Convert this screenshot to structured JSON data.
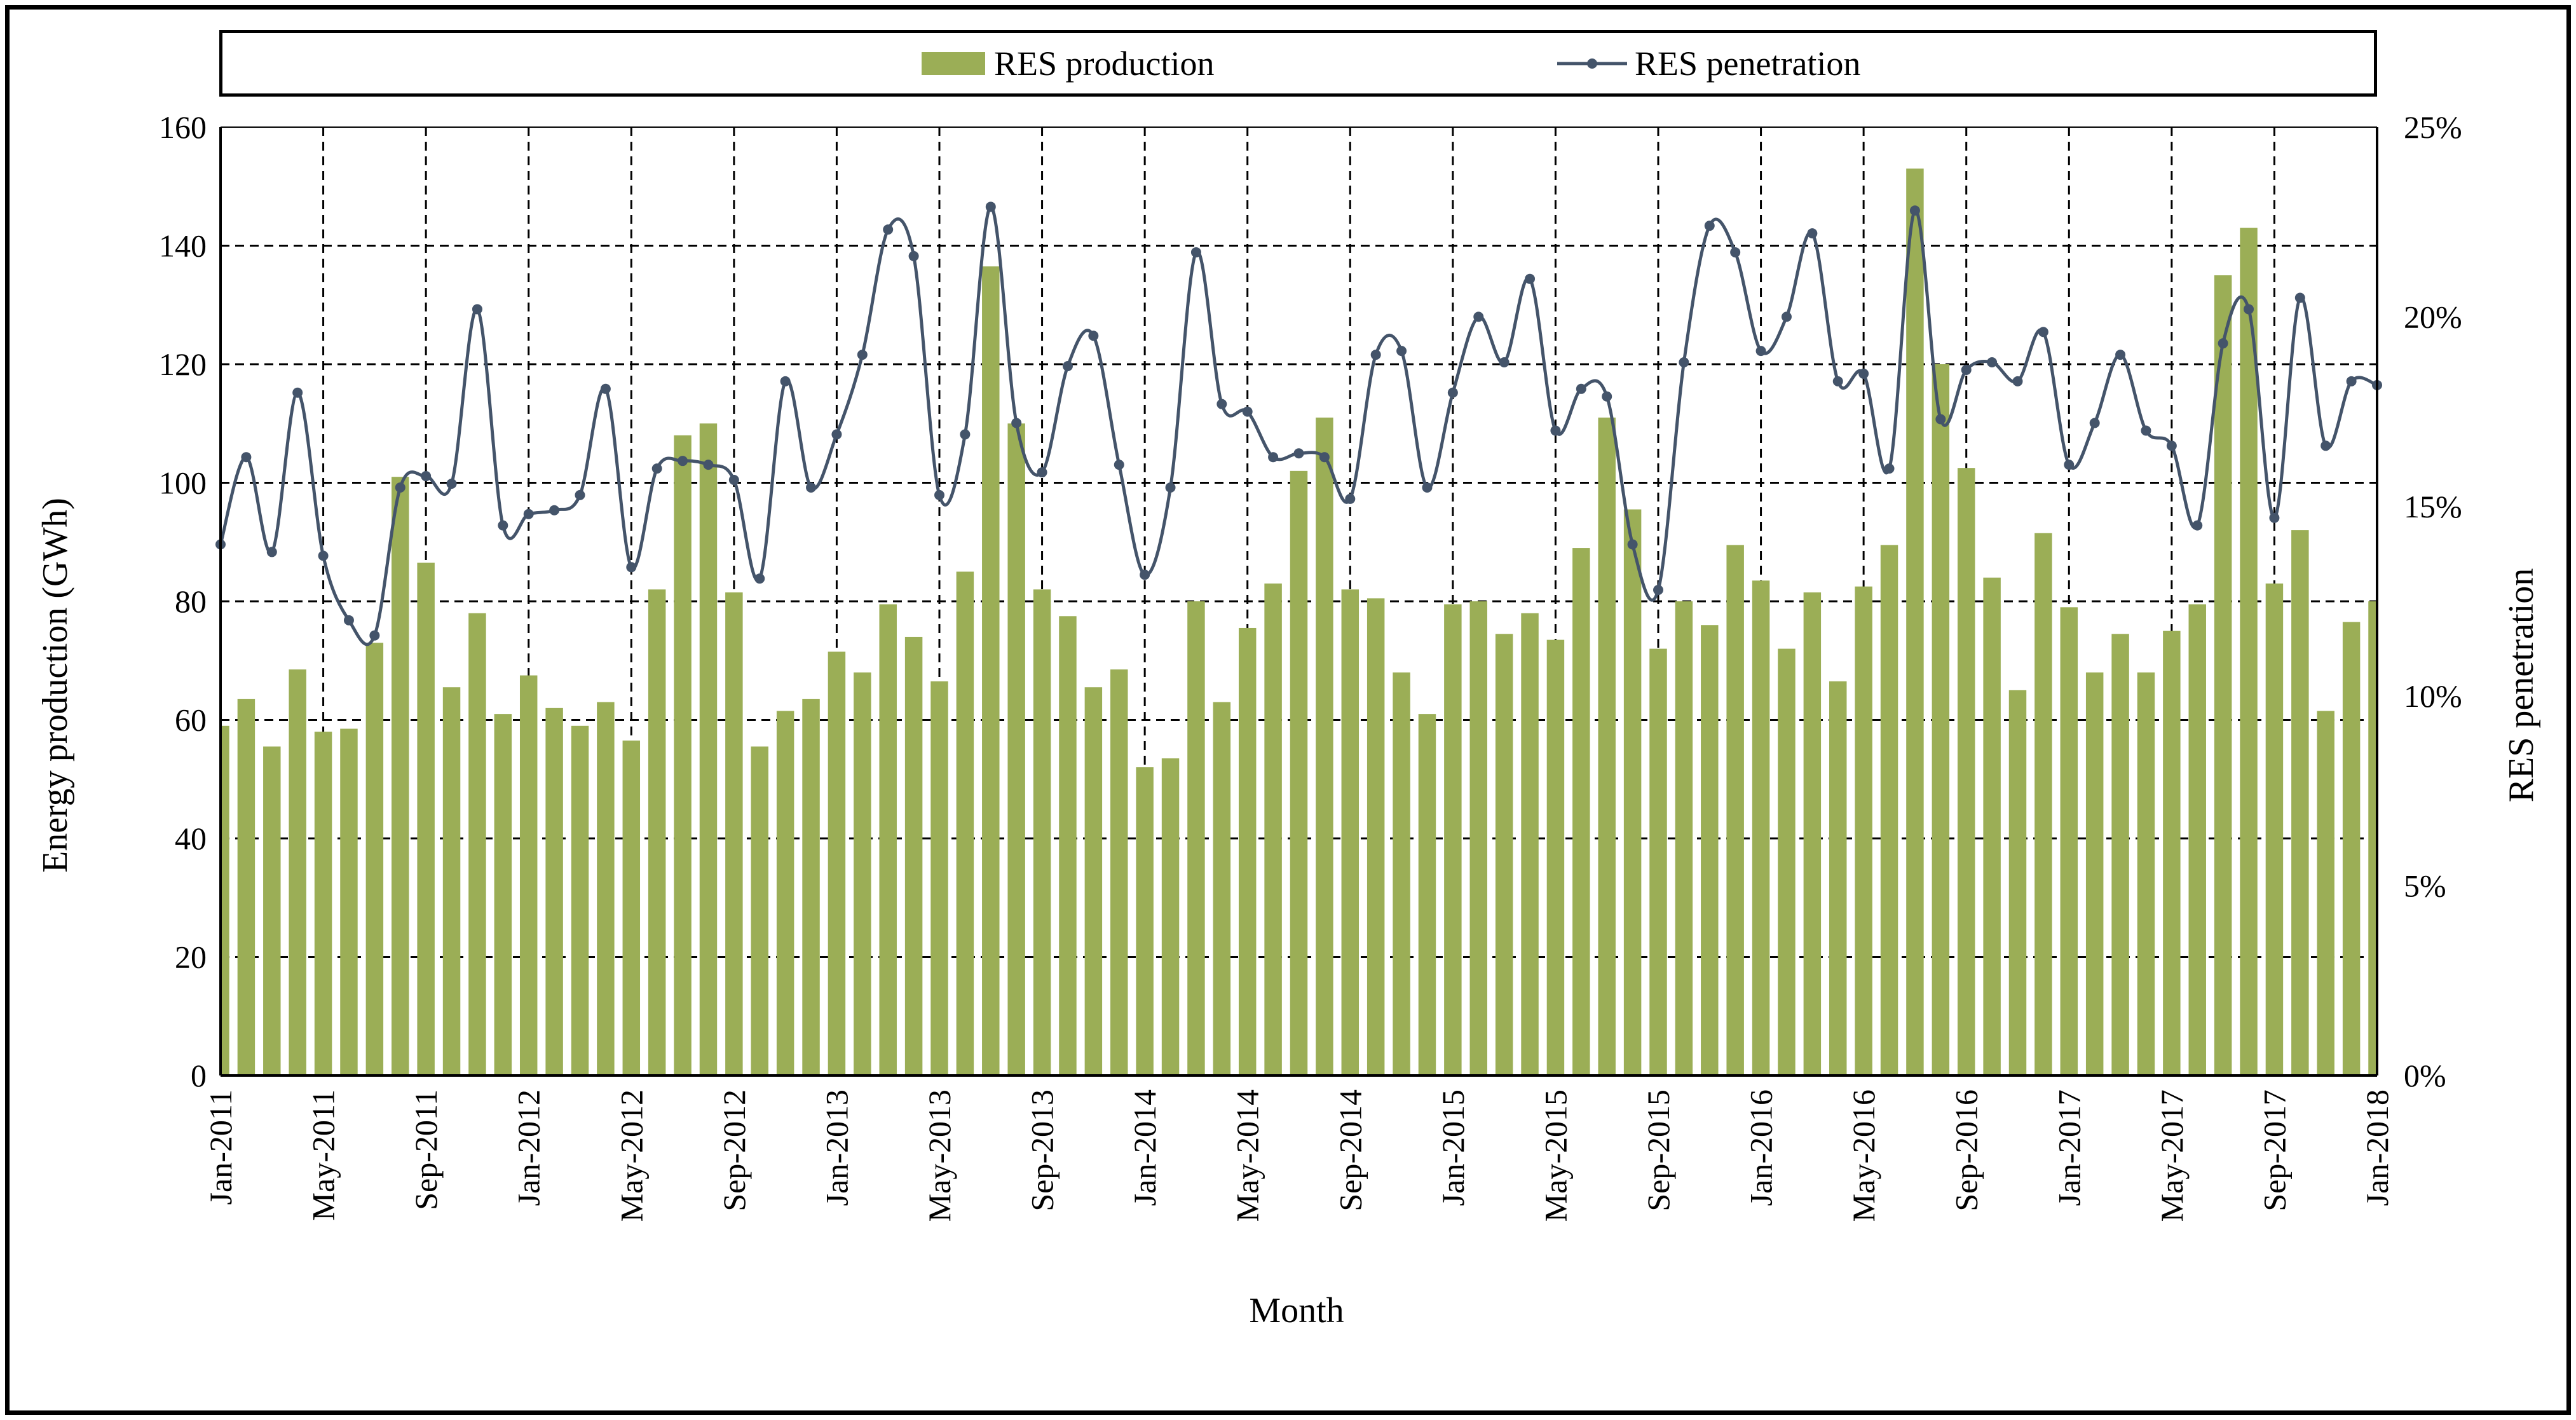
{
  "chart_data": {
    "type": "bar",
    "title": "",
    "xlabel": "Month",
    "ylabel": "Energy production (GWh)",
    "y2label": "RES penetration",
    "ylim": [
      0,
      160
    ],
    "y2lim": [
      0,
      25
    ],
    "yticks": [
      "0",
      "20",
      "40",
      "60",
      "80",
      "100",
      "120",
      "140",
      "160"
    ],
    "y2ticks": [
      "0%",
      "5%",
      "10%",
      "15%",
      "20%",
      "25%"
    ],
    "grid": "dashed",
    "legend_position": "top",
    "x": [
      "Jan-2011",
      "Feb-2011",
      "Mar-2011",
      "Apr-2011",
      "May-2011",
      "Jun-2011",
      "Jul-2011",
      "Aug-2011",
      "Sep-2011",
      "Oct-2011",
      "Nov-2011",
      "Dec-2011",
      "Jan-2012",
      "Feb-2012",
      "Mar-2012",
      "Apr-2012",
      "May-2012",
      "Jun-2012",
      "Jul-2012",
      "Aug-2012",
      "Sep-2012",
      "Oct-2012",
      "Nov-2012",
      "Dec-2012",
      "Jan-2013",
      "Feb-2013",
      "Mar-2013",
      "Apr-2013",
      "May-2013",
      "Jun-2013",
      "Jul-2013",
      "Aug-2013",
      "Sep-2013",
      "Oct-2013",
      "Nov-2013",
      "Dec-2013",
      "Jan-2014",
      "Feb-2014",
      "Mar-2014",
      "Apr-2014",
      "May-2014",
      "Jun-2014",
      "Jul-2014",
      "Aug-2014",
      "Sep-2014",
      "Oct-2014",
      "Nov-2014",
      "Dec-2014",
      "Jan-2015",
      "Feb-2015",
      "Mar-2015",
      "Apr-2015",
      "May-2015",
      "Jun-2015",
      "Jul-2015",
      "Aug-2015",
      "Sep-2015",
      "Oct-2015",
      "Nov-2015",
      "Dec-2015",
      "Jan-2016",
      "Feb-2016",
      "Mar-2016",
      "Apr-2016",
      "May-2016",
      "Jun-2016",
      "Jul-2016",
      "Aug-2016",
      "Sep-2016",
      "Oct-2016",
      "Nov-2016",
      "Dec-2016",
      "Jan-2017",
      "Feb-2017",
      "Mar-2017",
      "Apr-2017",
      "May-2017",
      "Jun-2017",
      "Jul-2017",
      "Aug-2017",
      "Sep-2017",
      "Oct-2017",
      "Nov-2017",
      "Dec-2017",
      "Jan-2018"
    ],
    "tick_labels": [
      "Jan-2011",
      "May-2011",
      "Sep-2011",
      "Jan-2012",
      "May-2012",
      "Sep-2012",
      "Jan-2013",
      "May-2013",
      "Sep-2013",
      "Jan-2014",
      "May-2014",
      "Sep-2014",
      "Jan-2015",
      "May-2015",
      "Sep-2015",
      "Jan-2016",
      "May-2016",
      "Sep-2016",
      "Jan-2017",
      "May-2017",
      "Sep-2017",
      "Jan-2018"
    ],
    "series": [
      {
        "name": "RES production",
        "type": "bar",
        "axis": "left",
        "color": "#9bae56",
        "values": [
          59,
          63.5,
          55.5,
          68.5,
          58,
          58.5,
          73,
          101,
          86.5,
          65.5,
          78,
          61,
          67.5,
          62,
          59,
          63,
          56.5,
          82,
          108,
          110,
          81.5,
          55.5,
          61.5,
          63.5,
          71.5,
          68,
          79.5,
          74,
          66.5,
          85,
          136.5,
          110,
          82,
          77.5,
          65.5,
          68.5,
          52,
          53.5,
          80,
          63,
          75.5,
          83,
          102,
          111,
          82,
          80.5,
          68,
          61,
          79.5,
          80,
          74.5,
          78,
          73.5,
          89,
          111,
          95.5,
          72,
          80,
          76,
          89.5,
          83.5,
          72,
          81.5,
          66.5,
          82.5,
          89.5,
          153,
          120,
          102.5,
          84,
          65,
          91.5,
          79,
          68,
          74.5,
          68,
          75,
          79.5,
          135,
          143,
          83,
          92,
          61.5,
          76.5,
          80
        ]
      },
      {
        "name": "RES penetration",
        "type": "line",
        "axis": "right",
        "color": "#44546a",
        "values": [
          14.0,
          16.3,
          13.8,
          18.0,
          13.7,
          12.0,
          11.6,
          15.5,
          15.8,
          15.6,
          20.2,
          14.5,
          14.8,
          14.9,
          15.3,
          18.1,
          13.4,
          16.0,
          16.2,
          16.1,
          15.7,
          13.1,
          18.3,
          15.5,
          16.9,
          19.0,
          22.3,
          21.6,
          15.3,
          16.9,
          22.9,
          17.2,
          15.9,
          18.7,
          19.5,
          16.1,
          13.2,
          15.5,
          21.7,
          17.7,
          17.5,
          16.3,
          16.4,
          16.3,
          15.2,
          19.0,
          19.1,
          15.5,
          18.0,
          20.0,
          18.8,
          21.0,
          17.0,
          18.1,
          17.9,
          14.0,
          12.8,
          18.8,
          22.4,
          21.7,
          19.1,
          20.0,
          22.2,
          18.3,
          18.5,
          16.0,
          22.8,
          17.3,
          18.6,
          18.8,
          18.3,
          19.6,
          16.1,
          17.2,
          19.0,
          17.0,
          16.6,
          14.5,
          19.3,
          20.2,
          14.7,
          20.5,
          16.6,
          18.3,
          18.2
        ]
      }
    ]
  }
}
